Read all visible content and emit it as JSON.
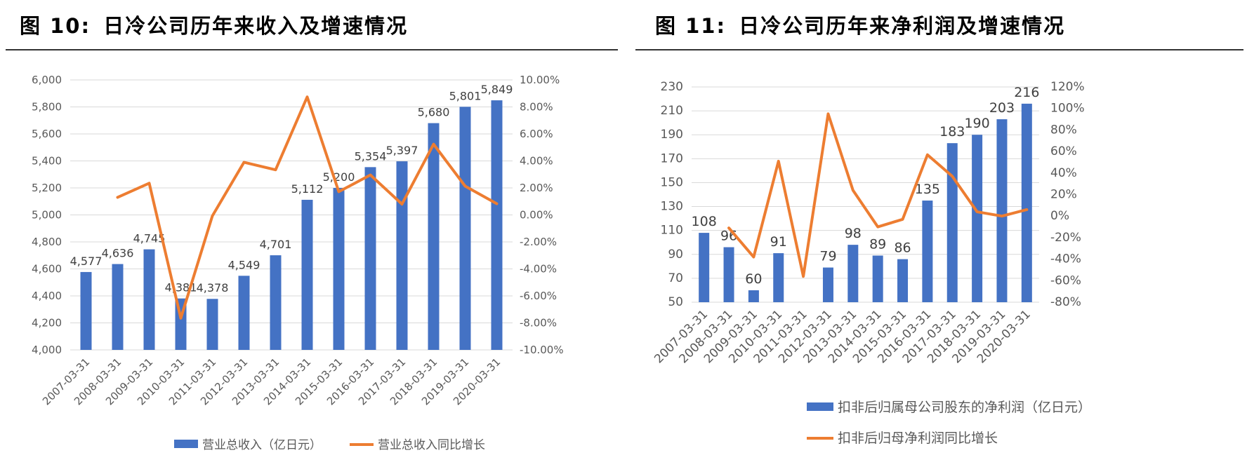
{
  "colors": {
    "bar": "#4472C4",
    "line": "#ED7D31",
    "grid": "#D9D9D9",
    "axis_text": "#595959"
  },
  "chart_data": [
    {
      "type": "bar",
      "fig_num": "图 10:",
      "title": "日冷公司历年来收入及增速情况",
      "categories": [
        "2007-03-31",
        "2008-03-31",
        "2009-03-31",
        "2010-03-31",
        "2011-03-31",
        "2012-03-31",
        "2013-03-31",
        "2014-03-31",
        "2015-03-31",
        "2016-03-31",
        "2017-03-31",
        "2018-03-31",
        "2019-03-31",
        "2020-03-31"
      ],
      "bar_values": [
        4577,
        4636,
        4745,
        4381,
        4378,
        4549,
        4701,
        5112,
        5200,
        5354,
        5397,
        5680,
        5801,
        5849
      ],
      "bar_labels": [
        "4,577",
        "4,636",
        "4,745",
        "4,381",
        "4,378",
        "4,549",
        "4,701",
        "5,112",
        "5,200",
        "5,354",
        "5,397",
        "5,680",
        "5,801",
        "5,849"
      ],
      "line_values": [
        null,
        1.3,
        2.35,
        -7.65,
        -0.07,
        3.9,
        3.34,
        8.74,
        1.72,
        2.96,
        0.8,
        5.24,
        2.13,
        0.83
      ],
      "ylim_left": [
        4000,
        6000
      ],
      "yticks_left": [
        "4,000",
        "4,200",
        "4,400",
        "4,600",
        "4,800",
        "5,000",
        "5,200",
        "5,400",
        "5,600",
        "5,800",
        "6,000"
      ],
      "ylim_right": [
        -10,
        10
      ],
      "yticks_right": [
        "-10.00%",
        "-8.00%",
        "-6.00%",
        "-4.00%",
        "-2.00%",
        "0.00%",
        "2.00%",
        "4.00%",
        "6.00%",
        "8.00%",
        "10.00%"
      ],
      "legend": {
        "bar": "营业总收入（亿日元）",
        "line": "营业总收入同比增长"
      }
    },
    {
      "type": "bar",
      "fig_num": "图 11:",
      "title": "日冷公司历年来净利润及增速情况",
      "categories": [
        "2007-03-31",
        "2008-03-31",
        "2009-03-31",
        "2010-03-31",
        "2011-03-31",
        "2012-03-31",
        "2013-03-31",
        "2014-03-31",
        "2015-03-31",
        "2016-03-31",
        "2017-03-31",
        "2018-03-31",
        "2019-03-31",
        "2020-03-31"
      ],
      "bar_values": [
        108,
        96,
        60,
        91,
        null,
        79,
        98,
        89,
        86,
        135,
        183,
        190,
        203,
        216
      ],
      "bar_labels": [
        "108",
        "96",
        "60",
        "91",
        "",
        "79",
        "98",
        "89",
        "86",
        "135",
        "183",
        "190",
        "203",
        "216"
      ],
      "line_values": [
        null,
        -11,
        -38,
        51,
        -56,
        95,
        24,
        -10,
        -3,
        57,
        37,
        4,
        0,
        6
      ],
      "ylim_left": [
        50,
        230
      ],
      "yticks_left": [
        "50",
        "70",
        "90",
        "110",
        "130",
        "150",
        "170",
        "190",
        "210",
        "230"
      ],
      "ylim_right": [
        -80,
        120
      ],
      "yticks_right": [
        "-80%",
        "-60%",
        "-40%",
        "-20%",
        "0%",
        "20%",
        "40%",
        "60%",
        "80%",
        "100%",
        "120%"
      ],
      "legend": {
        "bar": "扣非后归属母公司股东的净利润（亿日元）",
        "line": "扣非后归母净利润同比增长"
      }
    }
  ]
}
